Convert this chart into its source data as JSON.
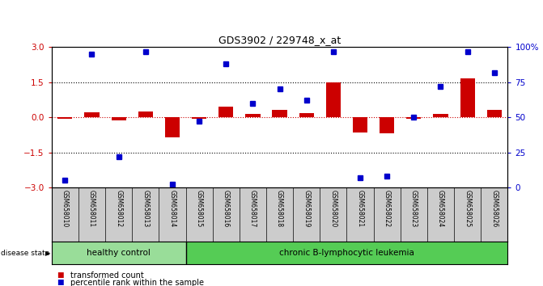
{
  "title": "GDS3902 / 229748_x_at",
  "samples": [
    "GSM658010",
    "GSM658011",
    "GSM658012",
    "GSM658013",
    "GSM658014",
    "GSM658015",
    "GSM658016",
    "GSM658017",
    "GSM658018",
    "GSM658019",
    "GSM658020",
    "GSM658021",
    "GSM658022",
    "GSM658023",
    "GSM658024",
    "GSM658025",
    "GSM658026"
  ],
  "bar_values": [
    -0.05,
    0.2,
    -0.12,
    0.25,
    -0.85,
    -0.05,
    0.45,
    0.15,
    0.3,
    0.18,
    1.5,
    -0.65,
    -0.7,
    -0.05,
    0.15,
    1.65,
    0.3
  ],
  "dot_values": [
    5,
    95,
    22,
    97,
    2,
    47,
    88,
    60,
    70,
    62,
    97,
    7,
    8,
    50,
    72,
    97,
    82
  ],
  "ylim": [
    -3,
    3
  ],
  "y2lim": [
    0,
    100
  ],
  "yticks_left": [
    -3,
    -1.5,
    0,
    1.5,
    3
  ],
  "yticks_right": [
    0,
    25,
    50,
    75,
    100
  ],
  "ytick_right_labels": [
    "0",
    "25",
    "50",
    "75",
    "100%"
  ],
  "bar_color": "#cc0000",
  "dot_color": "#0000cc",
  "healthy_count": 5,
  "healthy_color": "#99dd99",
  "leukemia_color": "#55cc55",
  "healthy_label": "healthy control",
  "leukemia_label": "chronic B-lymphocytic leukemia",
  "disease_state_label": "disease state",
  "legend_bar_label": "transformed count",
  "legend_dot_label": "percentile rank within the sample",
  "bg_color": "#ffffff",
  "xtick_bg": "#cccccc"
}
